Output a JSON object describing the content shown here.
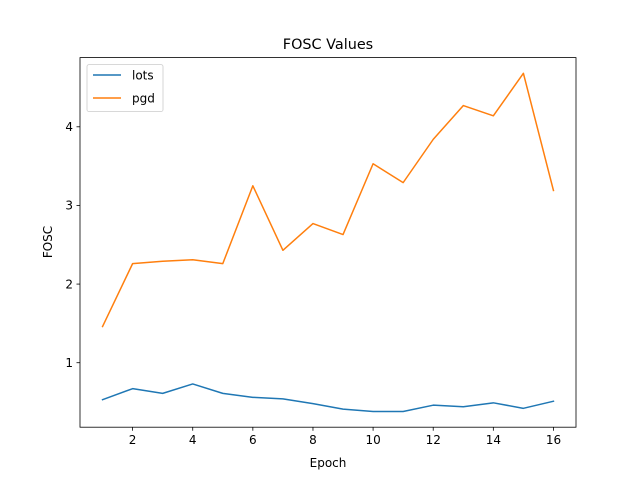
{
  "chart_data": {
    "type": "line",
    "title": "FOSC Values",
    "xlabel": "Epoch",
    "ylabel": "FOSC",
    "x": [
      1,
      2,
      3,
      4,
      5,
      6,
      7,
      8,
      9,
      10,
      11,
      12,
      13,
      14,
      15,
      16
    ],
    "xlim": [
      0.25,
      16.75
    ],
    "ylim": [
      0.18,
      4.88
    ],
    "xticks": [
      2,
      4,
      6,
      8,
      10,
      12,
      14,
      16
    ],
    "yticks": [
      1,
      2,
      3,
      4
    ],
    "grid": false,
    "legend_position": "top-left",
    "series": [
      {
        "name": "lots",
        "color": "#1f77b4",
        "values": [
          0.53,
          0.67,
          0.61,
          0.73,
          0.61,
          0.56,
          0.54,
          0.48,
          0.41,
          0.38,
          0.38,
          0.46,
          0.44,
          0.49,
          0.42,
          0.51
        ]
      },
      {
        "name": "pgd",
        "color": "#ff7f0e",
        "values": [
          1.46,
          2.26,
          2.29,
          2.31,
          2.26,
          3.25,
          2.43,
          2.77,
          2.63,
          3.53,
          3.29,
          3.84,
          4.27,
          4.14,
          4.68,
          3.19
        ]
      }
    ]
  }
}
